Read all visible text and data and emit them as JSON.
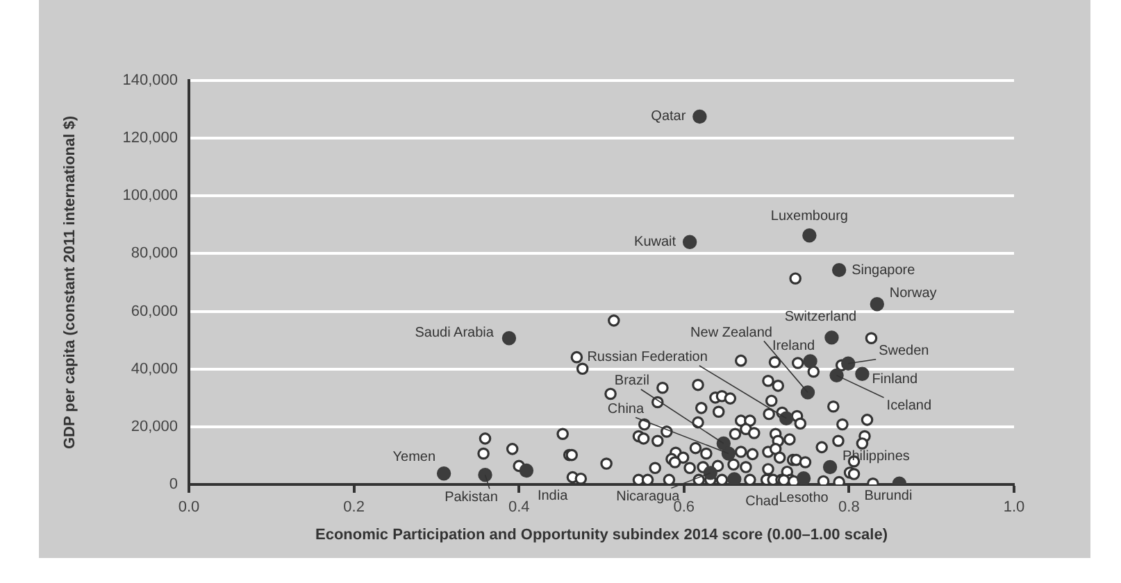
{
  "chart_data": {
    "type": "scatter",
    "xlabel": "Economic Participation and Opportunity subindex 2014 score (0.00–1.00 scale)",
    "ylabel": "GDP per capita (constant 2011 international $)",
    "xlim": [
      0,
      1
    ],
    "xticks": [
      {
        "value": 0,
        "label": "0.0"
      },
      {
        "value": 0.2,
        "label": "0.2"
      },
      {
        "value": 0.4,
        "label": "0.4"
      },
      {
        "value": 0.6,
        "label": "0.6"
      },
      {
        "value": 0.8,
        "label": "0.8"
      },
      {
        "value": 1,
        "label": "1.0"
      }
    ],
    "ylim": [
      0,
      140000
    ],
    "yticks": [
      0,
      {
        "value": 20000,
        "label": "20,000"
      },
      {
        "value": 40000,
        "label": "40,000"
      },
      {
        "value": 60000,
        "label": "60,000"
      },
      {
        "value": 80000,
        "label": "80,000"
      },
      {
        "value": 100000,
        "label": "100,000"
      },
      {
        "value": 120000,
        "label": "120,000"
      },
      {
        "value": 140000,
        "label": "140,000"
      }
    ],
    "grid": "y",
    "marker": "circle",
    "series": [
      {
        "color": "#3d3d3d",
        "x": [
          0.619,
          0.607,
          0.752,
          0.788,
          0.834,
          0.388,
          0.309,
          0.359,
          0.409,
          0.779,
          0.753,
          0.799,
          0.816,
          0.785,
          0.75,
          0.724,
          0.648,
          0.654,
          0.632,
          0.661,
          0.777,
          0.745,
          0.861
        ],
        "values": [
          127500,
          84000,
          86300,
          74300,
          62500,
          50700,
          3800,
          3300,
          4800,
          50900,
          42700,
          41900,
          38300,
          37800,
          31900,
          22900,
          14200,
          10700,
          4000,
          1800,
          6000,
          2100,
          300
        ]
      },
      {
        "color": "#ffffff",
        "x": [
          0.735,
          0.515,
          0.47,
          0.477,
          0.359,
          0.357,
          0.392,
          0.4,
          0.453,
          0.461,
          0.464,
          0.465,
          0.475,
          0.669,
          0.71,
          0.738,
          0.702,
          0.714,
          0.511,
          0.574,
          0.617,
          0.568,
          0.621,
          0.638,
          0.646,
          0.656,
          0.642,
          0.706,
          0.703,
          0.719,
          0.552,
          0.617,
          0.669,
          0.68,
          0.545,
          0.551,
          0.568,
          0.579,
          0.662,
          0.675,
          0.685,
          0.711,
          0.714,
          0.728,
          0.59,
          0.599,
          0.585,
          0.614,
          0.627,
          0.669,
          0.683,
          0.702,
          0.711,
          0.716,
          0.732,
          0.506,
          0.565,
          0.589,
          0.607,
          0.623,
          0.641,
          0.66,
          0.675,
          0.702,
          0.725,
          0.736,
          0.545,
          0.556,
          0.582,
          0.618,
          0.632,
          0.646,
          0.68,
          0.7,
          0.708,
          0.718,
          0.729,
          0.827,
          0.757,
          0.791,
          0.781,
          0.737,
          0.741,
          0.792,
          0.822,
          0.787,
          0.819,
          0.816,
          0.767,
          0.747,
          0.806,
          0.801,
          0.806,
          0.721,
          0.733,
          0.769,
          0.788,
          0.829
        ],
        "values": [
          71400,
          56800,
          44100,
          40100,
          15900,
          10700,
          12300,
          6400,
          17500,
          10200,
          10200,
          2500,
          2000,
          42900,
          42400,
          42100,
          35900,
          34200,
          31400,
          33500,
          34500,
          28500,
          26500,
          30100,
          30600,
          29800,
          25200,
          29000,
          24400,
          24900,
          20800,
          21500,
          22100,
          22100,
          16700,
          15900,
          15100,
          18300,
          17500,
          19200,
          17800,
          17500,
          15100,
          15600,
          11000,
          9300,
          8800,
          12600,
          10700,
          11300,
          10500,
          11300,
          12300,
          9300,
          8500,
          7200,
          5700,
          7700,
          5700,
          6000,
          6400,
          6900,
          6000,
          5300,
          4400,
          8500,
          1600,
          1600,
          1600,
          1600,
          1600,
          1600,
          1600,
          1600,
          1600,
          1600,
          1600,
          50700,
          39100,
          41300,
          27000,
          23700,
          21100,
          20800,
          22400,
          15100,
          16700,
          14200,
          12900,
          7700,
          8000,
          4100,
          3600,
          1500,
          1100,
          1100,
          800,
          300
        ]
      }
    ],
    "annotations": [
      {
        "text": "Qatar",
        "x": 0.619,
        "y": 127500
      },
      {
        "text": "Kuwait",
        "x": 0.607,
        "y": 84000
      },
      {
        "text": "Luxembourg",
        "x": 0.752,
        "y": 86300
      },
      {
        "text": "Singapore",
        "x": 0.788,
        "y": 74300
      },
      {
        "text": "Norway",
        "x": 0.834,
        "y": 62500
      },
      {
        "text": "Saudi Arabia",
        "x": 0.388,
        "y": 50700
      },
      {
        "text": "Yemen",
        "x": 0.309,
        "y": 3800
      },
      {
        "text": "Pakistan",
        "x": 0.359,
        "y": 3300
      },
      {
        "text": "India",
        "x": 0.409,
        "y": 4800
      },
      {
        "text": "Switzerland",
        "x": 0.779,
        "y": 50900
      },
      {
        "text": "Ireland",
        "x": 0.753,
        "y": 42700
      },
      {
        "text": "Sweden",
        "x": 0.799,
        "y": 41900
      },
      {
        "text": "Finland",
        "x": 0.816,
        "y": 38300
      },
      {
        "text": "Iceland",
        "x": 0.785,
        "y": 37800
      },
      {
        "text": "New Zealand",
        "x": 0.75,
        "y": 31900
      },
      {
        "text": "Russian Federation",
        "x": 0.724,
        "y": 22900
      },
      {
        "text": "Brazil",
        "x": 0.648,
        "y": 14200
      },
      {
        "text": "China",
        "x": 0.654,
        "y": 10700
      },
      {
        "text": "Nicaragua",
        "x": 0.632,
        "y": 4000
      },
      {
        "text": "Chad",
        "x": 0.661,
        "y": 1800
      },
      {
        "text": "Philippines",
        "x": 0.777,
        "y": 6000
      },
      {
        "text": "Lesotho",
        "x": 0.745,
        "y": 2100
      },
      {
        "text": "Burundi",
        "x": 0.861,
        "y": 300
      }
    ]
  }
}
